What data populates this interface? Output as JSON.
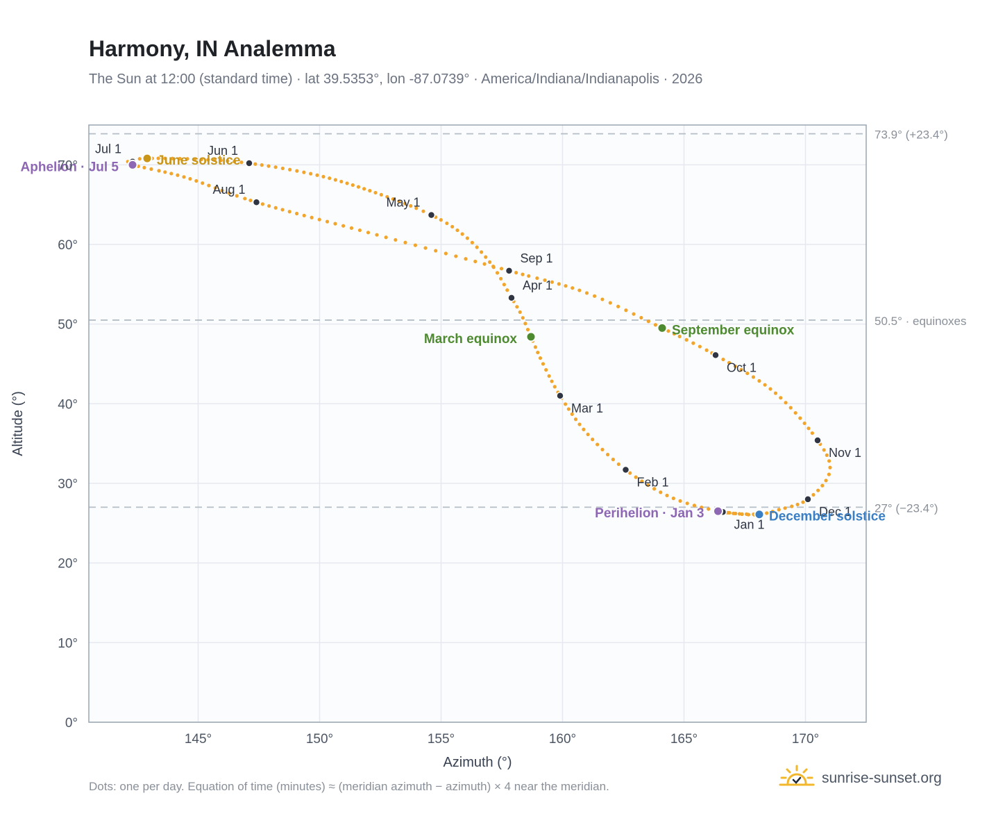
{
  "header": {
    "title": "Harmony, IN Analemma",
    "subtitle": "The Sun at 12:00 (standard time) · lat 39.5353°, lon -87.0739° · America/Indiana/Indianapolis · 2026"
  },
  "footer": {
    "note": "Dots: one per day. Equation of time (minutes) ≈ (meridian azimuth − azimuth) × 4 near the meridian.",
    "brand": "sunrise-sunset.org"
  },
  "colors": {
    "curve": "#f2a52b",
    "month_dot": "#2f3542",
    "equinox": "#4e8a2f",
    "june_solstice": "#c9961a",
    "december_solstice": "#3a7ec4",
    "apsis": "#8d67b3",
    "grid": "#e5e8ee",
    "plot_bg": "#fafcfe",
    "ref_line": "#b5bec7"
  },
  "chart_data": {
    "type": "scatter",
    "xlabel": "Azimuth (°)",
    "ylabel": "Altitude (°)",
    "xlim": [
      140.5,
      172.5
    ],
    "ylim": [
      0,
      75
    ],
    "x_ticks": [
      145,
      150,
      155,
      160,
      165,
      170
    ],
    "x_tick_labels": [
      "145°",
      "150°",
      "155°",
      "160°",
      "165°",
      "170°"
    ],
    "y_ticks": [
      0,
      10,
      20,
      30,
      40,
      50,
      60,
      70
    ],
    "y_tick_labels": [
      "0°",
      "10°",
      "20°",
      "30°",
      "40°",
      "50°",
      "60°",
      "70°"
    ],
    "grid": true,
    "reference_lines": [
      {
        "y": 73.9,
        "label": "73.9° (+23.4°)"
      },
      {
        "y": 50.5,
        "label": "50.5° · equinoxes"
      },
      {
        "y": 27.0,
        "label": "27° (−23.4°)"
      }
    ],
    "path_points": [
      {
        "x": 166.6,
        "y": 26.4
      },
      {
        "x": 167.5,
        "y": 26.1
      },
      {
        "x": 168.1,
        "y": 26.1
      },
      {
        "x": 166.6,
        "y": 26.4
      },
      {
        "x": 164.5,
        "y": 28.2
      },
      {
        "x": 162.6,
        "y": 31.7
      },
      {
        "x": 161.0,
        "y": 36.3
      },
      {
        "x": 159.9,
        "y": 41.0
      },
      {
        "x": 159.2,
        "y": 45.0
      },
      {
        "x": 158.7,
        "y": 48.4
      },
      {
        "x": 158.3,
        "y": 51.2
      },
      {
        "x": 157.9,
        "y": 53.3
      },
      {
        "x": 157.1,
        "y": 57.4
      },
      {
        "x": 156.0,
        "y": 61.0
      },
      {
        "x": 154.6,
        "y": 63.7
      },
      {
        "x": 152.3,
        "y": 66.5
      },
      {
        "x": 149.9,
        "y": 68.7
      },
      {
        "x": 147.1,
        "y": 70.2
      },
      {
        "x": 145.0,
        "y": 70.7
      },
      {
        "x": 142.9,
        "y": 70.8
      },
      {
        "x": 142.2,
        "y": 70.5
      },
      {
        "x": 142.3,
        "y": 70.0
      },
      {
        "x": 144.5,
        "y": 68.4
      },
      {
        "x": 147.4,
        "y": 65.3
      },
      {
        "x": 152.0,
        "y": 61.5
      },
      {
        "x": 157.8,
        "y": 56.7
      },
      {
        "x": 161.0,
        "y": 53.9
      },
      {
        "x": 164.1,
        "y": 49.5
      },
      {
        "x": 166.3,
        "y": 46.1
      },
      {
        "x": 168.7,
        "y": 41.5
      },
      {
        "x": 170.5,
        "y": 35.4
      },
      {
        "x": 171.0,
        "y": 31.5
      },
      {
        "x": 170.1,
        "y": 28.0
      },
      {
        "x": 168.8,
        "y": 26.6
      },
      {
        "x": 168.1,
        "y": 26.1
      },
      {
        "x": 167.5,
        "y": 26.1
      },
      {
        "x": 166.6,
        "y": 26.4
      }
    ],
    "month_markers": [
      {
        "label": "Jan 1",
        "x": 166.6,
        "y": 26.4,
        "pos": "below-right"
      },
      {
        "label": "Feb 1",
        "x": 162.6,
        "y": 31.7,
        "pos": "below-right"
      },
      {
        "label": "Mar 1",
        "x": 159.9,
        "y": 41.0,
        "pos": "below-right"
      },
      {
        "label": "Apr 1",
        "x": 157.9,
        "y": 53.3,
        "pos": "above-right"
      },
      {
        "label": "May 1",
        "x": 154.6,
        "y": 63.7,
        "pos": "above-left"
      },
      {
        "label": "Jun 1",
        "x": 147.1,
        "y": 70.2,
        "pos": "above-left"
      },
      {
        "label": "Jul 1",
        "x": 142.3,
        "y": 70.4,
        "pos": "above-left"
      },
      {
        "label": "Aug 1",
        "x": 147.4,
        "y": 65.3,
        "pos": "above-left"
      },
      {
        "label": "Sep 1",
        "x": 157.8,
        "y": 56.7,
        "pos": "above-right"
      },
      {
        "label": "Oct 1",
        "x": 166.3,
        "y": 46.1,
        "pos": "below-right"
      },
      {
        "label": "Nov 1",
        "x": 170.5,
        "y": 35.4,
        "pos": "below-right"
      },
      {
        "label": "Dec 1",
        "x": 170.1,
        "y": 28.0,
        "pos": "below-right"
      }
    ],
    "events": [
      {
        "label": "March equinox",
        "x": 158.7,
        "y": 48.4,
        "color": "#4e8a2f",
        "side": "left"
      },
      {
        "label": "September equinox",
        "x": 164.1,
        "y": 49.5,
        "color": "#4e8a2f",
        "side": "right"
      },
      {
        "label": "June solstice",
        "x": 142.9,
        "y": 70.8,
        "color": "#c9961a",
        "side": "right"
      },
      {
        "label": "December solstice",
        "x": 168.1,
        "y": 26.1,
        "color": "#3a7ec4",
        "side": "right"
      },
      {
        "label": "Aphelion · Jul 5",
        "x": 142.3,
        "y": 70.0,
        "color": "#8d67b3",
        "side": "left"
      },
      {
        "label": "Perihelion · Jan 3",
        "x": 166.4,
        "y": 26.5,
        "color": "#8d67b3",
        "side": "left"
      }
    ]
  }
}
